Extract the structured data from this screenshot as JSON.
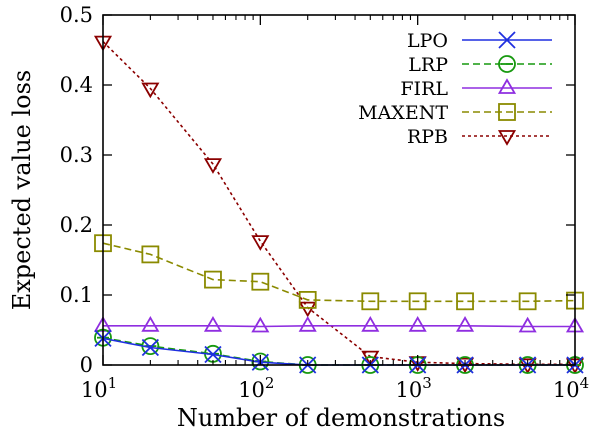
{
  "chart_data": {
    "type": "line",
    "title": "",
    "xlabel": "Number of demonstrations",
    "ylabel": "Expected value loss",
    "x_scale": "log",
    "xlim": [
      10,
      10000
    ],
    "ylim": [
      0,
      0.5
    ],
    "x_ticks": [
      {
        "value": 10,
        "base": "10",
        "exp": "1"
      },
      {
        "value": 100,
        "base": "10",
        "exp": "2"
      },
      {
        "value": 1000,
        "base": "10",
        "exp": "3"
      },
      {
        "value": 10000,
        "base": "10",
        "exp": "4"
      }
    ],
    "y_ticks": [
      {
        "value": 0,
        "label": "0"
      },
      {
        "value": 0.1,
        "label": "0.1"
      },
      {
        "value": 0.2,
        "label": "0.2"
      },
      {
        "value": 0.3,
        "label": "0.3"
      },
      {
        "value": 0.4,
        "label": "0.4"
      },
      {
        "value": 0.5,
        "label": "0.5"
      }
    ],
    "grid": false,
    "legend_position": "top-right",
    "x": [
      10,
      20,
      50,
      100,
      200,
      500,
      1000,
      2000,
      5000,
      10000
    ],
    "series": [
      {
        "name": "LPO",
        "color": "#1f2fe0",
        "marker": "x",
        "dash": "solid",
        "values": [
          0.038,
          0.025,
          0.015,
          0.004,
          0.0,
          0.0,
          0.0,
          0.0,
          0.0,
          0.0
        ]
      },
      {
        "name": "LRP",
        "color": "#17990f",
        "marker": "circle-minus",
        "dash": "dashed",
        "values": [
          0.039,
          0.027,
          0.016,
          0.005,
          0.0,
          0.0,
          0.0,
          0.0,
          0.0,
          0.0
        ]
      },
      {
        "name": "FIRL",
        "color": "#8f2ee0",
        "marker": "triangle",
        "dash": "solid",
        "values": [
          0.056,
          0.056,
          0.056,
          0.055,
          0.056,
          0.056,
          0.056,
          0.056,
          0.055,
          0.055
        ]
      },
      {
        "name": "MAXENT",
        "color": "#8a8a00",
        "marker": "square",
        "dash": "dashed",
        "values": [
          0.174,
          0.158,
          0.122,
          0.119,
          0.093,
          0.091,
          0.091,
          0.091,
          0.091,
          0.092
        ]
      },
      {
        "name": "RPB",
        "color": "#8b0000",
        "marker": "triangle-down",
        "dash": "dotted",
        "values": [
          0.462,
          0.395,
          0.287,
          0.177,
          0.082,
          0.012,
          0.004,
          0.002,
          0.001,
          0.001
        ]
      }
    ]
  }
}
